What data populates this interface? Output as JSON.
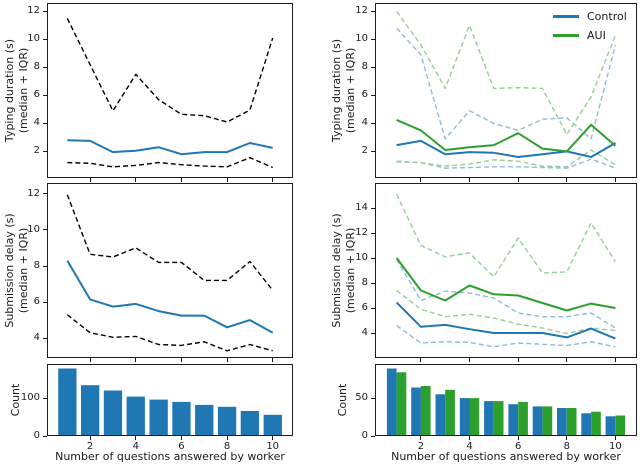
{
  "figure": {
    "xlabel": "Number of questions answered by worker"
  },
  "colors": {
    "control": "#1f77b4",
    "aui": "#2ca02c",
    "control_iqr": "#8fbbd9",
    "aui_iqr": "#95cf95",
    "black_iqr": "#000000"
  },
  "chart_data": [
    {
      "id": "typing-duration-control",
      "type": "line",
      "ylabel": [
        "Typing duration (s)",
        "(median + IQR)"
      ],
      "x": [
        1,
        2,
        3,
        4,
        5,
        6,
        7,
        8,
        9,
        10
      ],
      "xlim": [
        0.11,
        10.89
      ],
      "ylim": [
        0.1,
        12.6
      ],
      "yticks": [
        2,
        4,
        6,
        8,
        10,
        12
      ],
      "xticks": [
        2,
        4,
        6,
        8,
        10
      ],
      "grid": false,
      "series": [
        {
          "name": "q3-upper-iqr",
          "color": "#000000",
          "style": "dashed",
          "width": 1.4,
          "values": [
            11.5,
            8.2,
            4.9,
            7.5,
            5.7,
            4.65,
            4.55,
            4.1,
            4.95,
            10.1
          ]
        },
        {
          "name": "q1-lower-iqr",
          "color": "#000000",
          "style": "dashed",
          "width": 1.4,
          "values": [
            1.2,
            1.15,
            0.9,
            1.0,
            1.2,
            1.05,
            0.95,
            0.9,
            1.55,
            0.85
          ]
        },
        {
          "name": "median",
          "color": "#1f77b4",
          "style": "solid",
          "width": 2,
          "values": [
            2.8,
            2.75,
            1.95,
            2.05,
            2.3,
            1.8,
            1.95,
            1.95,
            2.6,
            2.25
          ]
        }
      ]
    },
    {
      "id": "typing-duration-comparison",
      "type": "line",
      "ylabel": [
        "Typing duration (s)",
        "(median + IQR)"
      ],
      "x": [
        1,
        2,
        3,
        4,
        5,
        6,
        7,
        8,
        9,
        10
      ],
      "xlim": [
        0.11,
        10.89
      ],
      "ylim": [
        0.1,
        12.6
      ],
      "yticks": [
        2,
        4,
        6,
        8,
        10,
        12
      ],
      "xticks": [
        2,
        4,
        6,
        8,
        10
      ],
      "grid": false,
      "legend": {
        "position": "upper-right",
        "entries": [
          {
            "label": "Control",
            "color": "#1f77b4"
          },
          {
            "label": "AUI",
            "color": "#2ca02c"
          }
        ]
      },
      "series": [
        {
          "name": "control-q3-iqr",
          "color": "#8fbbd9",
          "style": "dashed",
          "width": 1.4,
          "values": [
            10.8,
            8.9,
            2.9,
            4.9,
            4.0,
            3.5,
            4.3,
            4.4,
            2.9,
            9.6
          ]
        },
        {
          "name": "aui-q3-iqr",
          "color": "#95cf95",
          "style": "dashed",
          "width": 1.4,
          "values": [
            12.0,
            9.6,
            6.5,
            11.0,
            6.5,
            6.55,
            6.5,
            3.2,
            5.9,
            10.3
          ]
        },
        {
          "name": "control-q1-iqr",
          "color": "#8fbbd9",
          "style": "dashed",
          "width": 1.4,
          "values": [
            1.25,
            1.2,
            0.8,
            0.85,
            0.9,
            0.9,
            0.85,
            0.8,
            1.45,
            0.8
          ]
        },
        {
          "name": "aui-q1-iqr",
          "color": "#95cf95",
          "style": "dashed",
          "width": 1.4,
          "values": [
            1.3,
            1.2,
            0.95,
            1.1,
            1.4,
            1.3,
            0.95,
            0.9,
            2.1,
            1.05
          ]
        },
        {
          "name": "control-median",
          "color": "#1f77b4",
          "style": "solid",
          "width": 2,
          "values": [
            2.45,
            2.75,
            1.8,
            1.95,
            1.9,
            1.6,
            1.8,
            2.0,
            1.6,
            2.6
          ]
        },
        {
          "name": "aui-median",
          "color": "#2ca02c",
          "style": "solid",
          "width": 2,
          "values": [
            4.25,
            3.5,
            2.1,
            2.3,
            2.45,
            3.3,
            2.2,
            2.0,
            3.9,
            2.4
          ]
        }
      ]
    },
    {
      "id": "submission-delay-control",
      "type": "line",
      "ylabel": [
        "Submission delay (s)",
        "(median + IQR)"
      ],
      "x": [
        1,
        2,
        3,
        4,
        5,
        6,
        7,
        8,
        9,
        10
      ],
      "xlim": [
        0.11,
        10.89
      ],
      "ylim": [
        2.9,
        12.6
      ],
      "yticks": [
        4,
        6,
        8,
        10,
        12
      ],
      "xticks": [
        2,
        4,
        6,
        8,
        10
      ],
      "grid": false,
      "series": [
        {
          "name": "q3-upper-iqr",
          "color": "#000000",
          "style": "dashed",
          "width": 1.4,
          "values": [
            11.95,
            8.65,
            8.5,
            9.0,
            8.2,
            8.2,
            7.2,
            7.2,
            8.25,
            6.65
          ]
        },
        {
          "name": "q1-lower-iqr",
          "color": "#000000",
          "style": "dashed",
          "width": 1.4,
          "values": [
            5.3,
            4.3,
            4.05,
            4.1,
            3.65,
            3.6,
            3.8,
            3.3,
            3.65,
            3.3
          ]
        },
        {
          "name": "median",
          "color": "#1f77b4",
          "style": "solid",
          "width": 2,
          "values": [
            8.3,
            6.15,
            5.75,
            5.9,
            5.5,
            5.25,
            5.25,
            4.6,
            5.0,
            4.3
          ]
        }
      ]
    },
    {
      "id": "submission-delay-comparison",
      "type": "line",
      "ylabel": [
        "Submission delay (s)",
        "(median + IQR)"
      ],
      "x": [
        1,
        2,
        3,
        4,
        5,
        6,
        7,
        8,
        9,
        10
      ],
      "xlim": [
        0.11,
        10.89
      ],
      "ylim": [
        2.0,
        16.0
      ],
      "yticks": [
        4,
        6,
        8,
        10,
        12,
        14
      ],
      "xticks": [
        2,
        4,
        6,
        8,
        10
      ],
      "grid": false,
      "series": [
        {
          "name": "control-q3-iqr",
          "color": "#8fbbd9",
          "style": "dashed",
          "width": 1.4,
          "values": [
            9.9,
            6.6,
            7.35,
            7.2,
            6.8,
            5.6,
            5.3,
            5.3,
            5.6,
            4.4
          ]
        },
        {
          "name": "aui-q3-iqr",
          "color": "#95cf95",
          "style": "dashed",
          "width": 1.4,
          "values": [
            15.1,
            11.0,
            10.1,
            10.4,
            8.5,
            11.6,
            8.8,
            8.9,
            12.8,
            9.7
          ]
        },
        {
          "name": "control-q1-iqr",
          "color": "#8fbbd9",
          "style": "dashed",
          "width": 1.4,
          "values": [
            4.6,
            3.2,
            3.3,
            3.25,
            2.9,
            3.2,
            3.1,
            3.0,
            3.3,
            2.9
          ]
        },
        {
          "name": "aui-q1-iqr",
          "color": "#95cf95",
          "style": "dashed",
          "width": 1.4,
          "values": [
            7.4,
            5.9,
            5.3,
            5.5,
            5.2,
            4.7,
            4.4,
            3.95,
            4.4,
            4.2
          ]
        },
        {
          "name": "control-median",
          "color": "#1f77b4",
          "style": "solid",
          "width": 2,
          "values": [
            6.45,
            4.5,
            4.65,
            4.3,
            4.0,
            4.0,
            4.0,
            3.65,
            4.35,
            3.55
          ]
        },
        {
          "name": "aui-median",
          "color": "#2ca02c",
          "style": "solid",
          "width": 2,
          "values": [
            10.0,
            7.4,
            6.6,
            7.8,
            7.1,
            7.0,
            6.4,
            5.8,
            6.35,
            6.0
          ]
        }
      ]
    },
    {
      "id": "count-control",
      "type": "bar",
      "ylabel": [
        "Count"
      ],
      "categories": [
        1,
        2,
        3,
        4,
        5,
        6,
        7,
        8,
        9,
        10
      ],
      "xlim": [
        0.11,
        10.89
      ],
      "ylim": [
        0,
        190
      ],
      "yticks": [
        0,
        100
      ],
      "xticks": [
        2,
        4,
        6,
        8,
        10
      ],
      "grid": false,
      "series": [
        {
          "name": "count",
          "color": "#1f77b4",
          "values": [
            178,
            134,
            120,
            104,
            96,
            90,
            82,
            77,
            66,
            56
          ]
        }
      ]
    },
    {
      "id": "count-comparison",
      "type": "bar",
      "ylabel": [
        "Count"
      ],
      "categories": [
        1,
        2,
        3,
        4,
        5,
        6,
        7,
        8,
        9,
        10
      ],
      "xlim": [
        0.11,
        10.89
      ],
      "ylim": [
        0,
        95
      ],
      "yticks": [
        0,
        50
      ],
      "xticks": [
        2,
        4,
        6,
        8,
        10
      ],
      "grid": false,
      "series": [
        {
          "name": "control-count",
          "color": "#1f77b4",
          "values": [
            89,
            64,
            55,
            50,
            46,
            42,
            39,
            37,
            30,
            26
          ]
        },
        {
          "name": "aui-count",
          "color": "#2ca02c",
          "values": [
            84,
            66,
            61,
            50,
            46,
            45,
            39,
            37,
            32,
            27
          ]
        }
      ]
    }
  ]
}
